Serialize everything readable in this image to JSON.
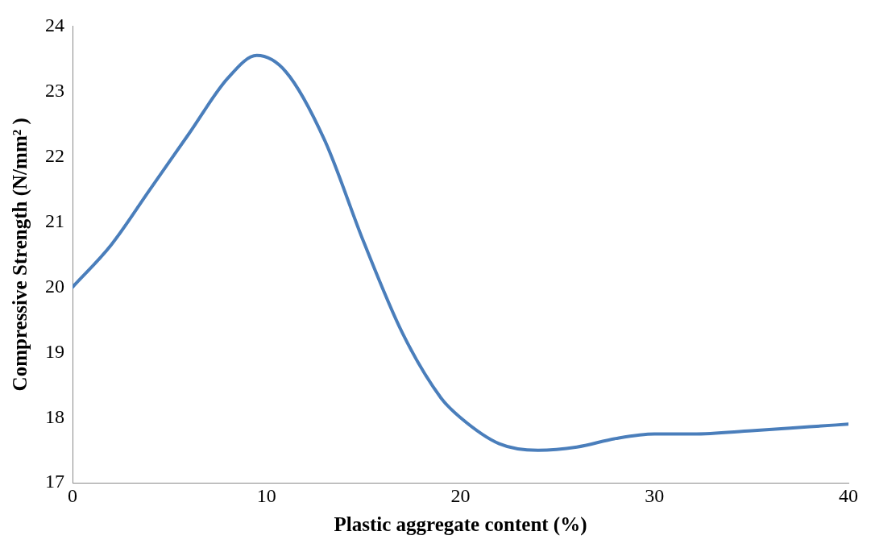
{
  "chart_data": {
    "type": "line",
    "xlabel": "Plastic aggregate content (%)",
    "ylabel": "Compressive Strength (N/mm² )",
    "xlim": [
      0,
      40
    ],
    "xticks": [
      0,
      10,
      20,
      30,
      40
    ],
    "ylim": [
      17,
      24
    ],
    "yticks": [
      17,
      18,
      19,
      20,
      21,
      22,
      23,
      24
    ],
    "grid": false,
    "legend": false,
    "marker": "none",
    "line_style": "solid",
    "series": [
      {
        "color": "#4a7ebb",
        "x": [
          0,
          2,
          4,
          6,
          8,
          9.5,
          11,
          13,
          15,
          17,
          19,
          20,
          22,
          24,
          26,
          28,
          30,
          32,
          35,
          38,
          40
        ],
        "values": [
          20.0,
          20.65,
          21.5,
          22.35,
          23.2,
          23.55,
          23.3,
          22.25,
          20.7,
          19.3,
          18.3,
          18.0,
          17.6,
          17.5,
          17.55,
          17.68,
          17.75,
          17.75,
          17.8,
          17.86,
          17.9
        ]
      }
    ]
  }
}
